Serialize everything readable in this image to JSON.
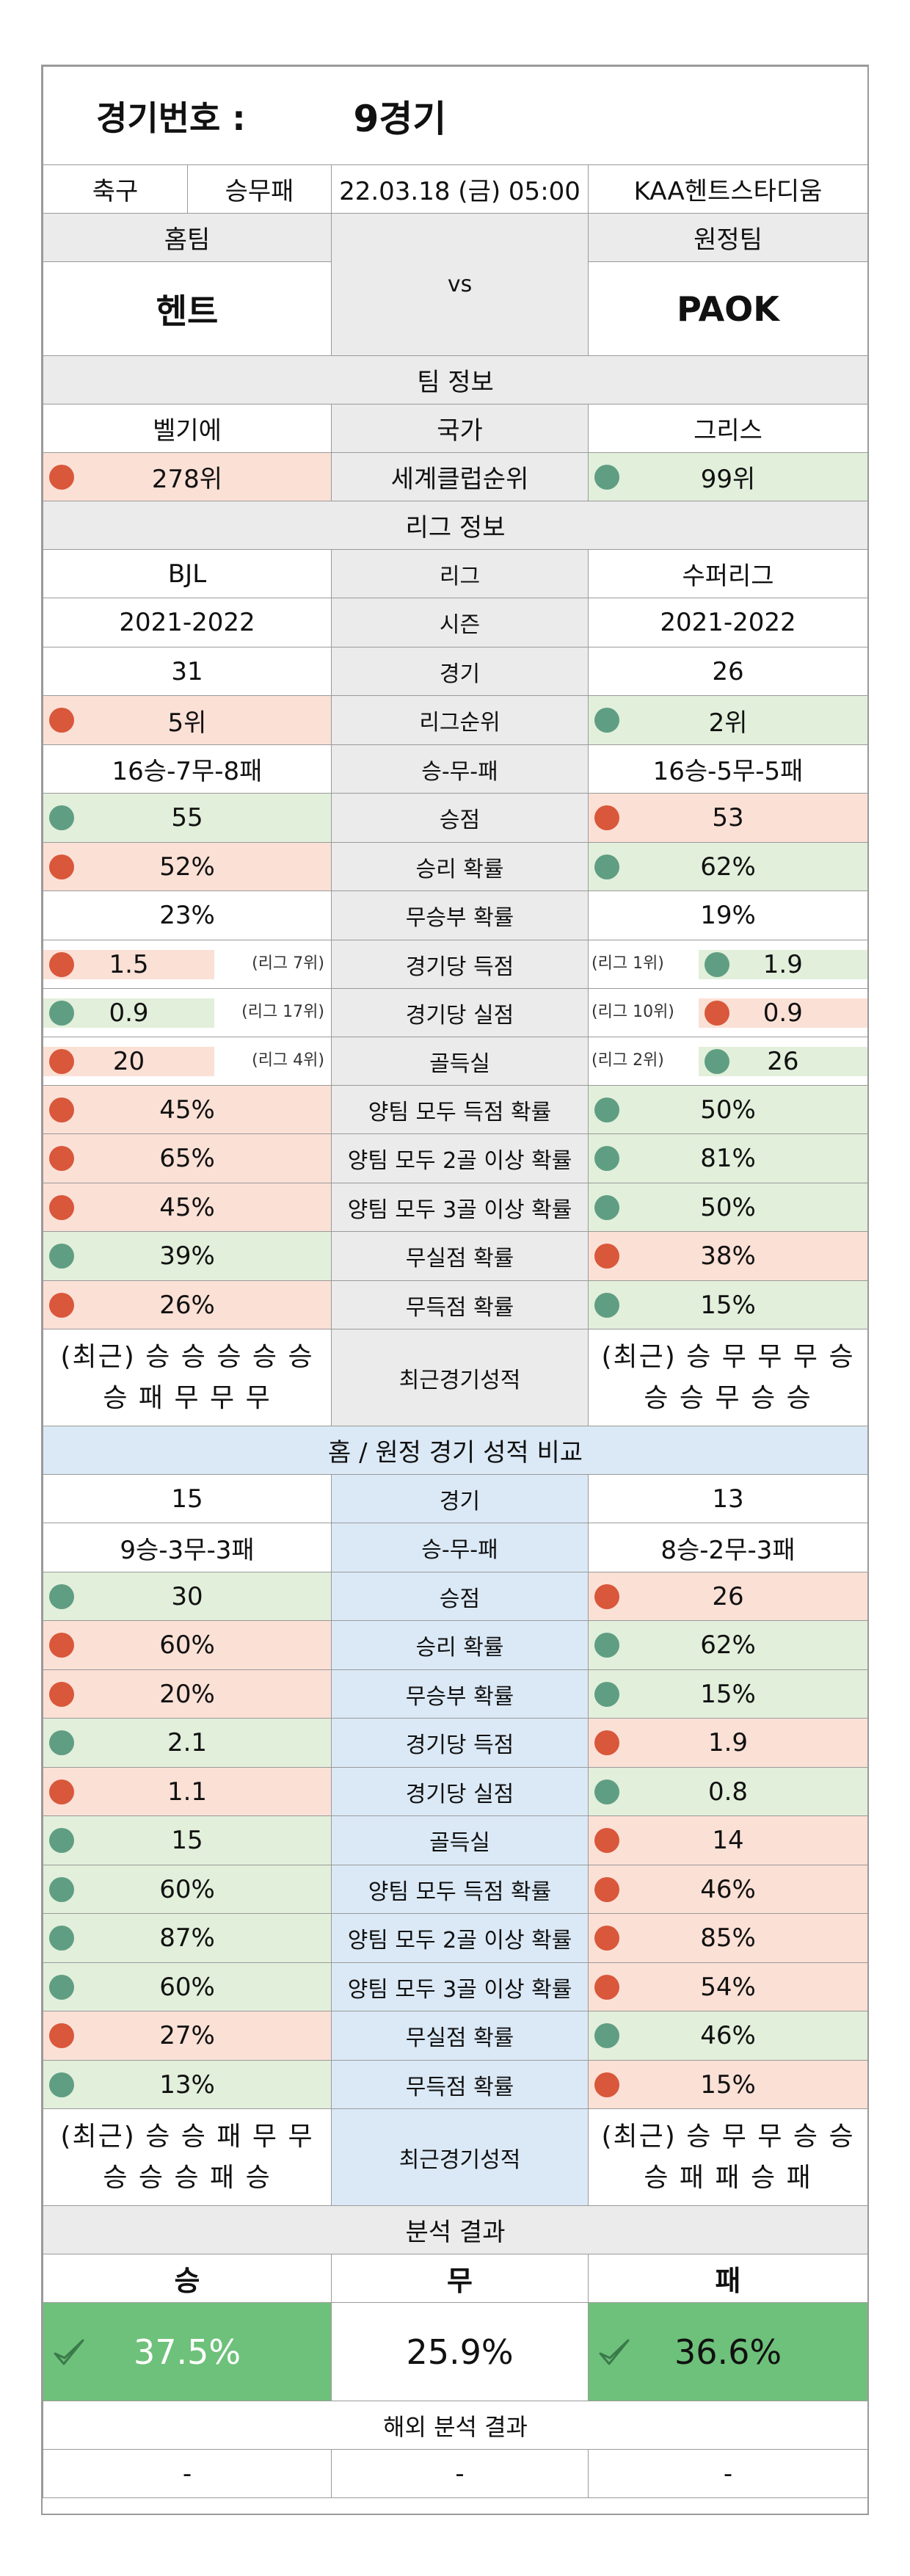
{
  "header": {
    "label": "경기번호 :",
    "number": "9경기"
  },
  "info": {
    "sport": "축구",
    "type": "승무패",
    "datetime": "22.03.18 (금) 05:00",
    "stadium": "KAA헨트스타디움"
  },
  "teams": {
    "home_label": "홈팀",
    "away_label": "원정팀",
    "home": "헨트",
    "away": "PAOK",
    "vs": "vs"
  },
  "team_info": {
    "title": "팀 정보",
    "country": {
      "home": "벨기에",
      "label": "국가",
      "away": "그리스"
    },
    "club_rank": {
      "home": "278위",
      "label": "세계클럽순위",
      "away": "99위",
      "home_color": "red",
      "away_color": "green"
    }
  },
  "league_info": {
    "title": "리그 정보",
    "rows": [
      {
        "home": "BJL",
        "label": "리그",
        "away": "수퍼리그",
        "hc": "white",
        "ac": "white"
      },
      {
        "home": "2021-2022",
        "label": "시즌",
        "away": "2021-2022",
        "hc": "white",
        "ac": "white"
      },
      {
        "home": "31",
        "label": "경기",
        "away": "26",
        "hc": "white",
        "ac": "white"
      },
      {
        "home": "5위",
        "label": "리그순위",
        "away": "2위",
        "hc": "red",
        "ac": "green"
      },
      {
        "home": "16승-7무-8패",
        "label": "승-무-패",
        "away": "16승-5무-5패",
        "hc": "white",
        "ac": "white"
      },
      {
        "home": "55",
        "label": "승점",
        "away": "53",
        "hc": "green",
        "ac": "red"
      },
      {
        "home": "52%",
        "label": "승리 확률",
        "away": "62%",
        "hc": "red",
        "ac": "green"
      },
      {
        "home": "23%",
        "label": "무승부 확률",
        "away": "19%",
        "hc": "white",
        "ac": "white"
      }
    ],
    "ranked_rows": [
      {
        "home": "1.5",
        "home_note": "(리그 7위)",
        "label": "경기당 득점",
        "away_note": "(리그 1위)",
        "away": "1.9",
        "hc": "red",
        "ac": "green"
      },
      {
        "home": "0.9",
        "home_note": "(리그 17위)",
        "label": "경기당 실점",
        "away_note": "(리그 10위)",
        "away": "0.9",
        "hc": "green",
        "ac": "red"
      },
      {
        "home": "20",
        "home_note": "(리그 4위)",
        "label": "골득실",
        "away_note": "(리그 2위)",
        "away": "26",
        "hc": "red",
        "ac": "green"
      }
    ],
    "prob_rows": [
      {
        "home": "45%",
        "label": "양팀 모두 득점 확률",
        "away": "50%",
        "hc": "red",
        "ac": "green"
      },
      {
        "home": "65%",
        "label": "양팀 모두 2골 이상 확률",
        "away": "81%",
        "hc": "red",
        "ac": "green"
      },
      {
        "home": "45%",
        "label": "양팀 모두 3골 이상 확률",
        "away": "50%",
        "hc": "red",
        "ac": "green"
      },
      {
        "home": "39%",
        "label": "무실점 확률",
        "away": "38%",
        "hc": "green",
        "ac": "red"
      },
      {
        "home": "26%",
        "label": "무득점 확률",
        "away": "15%",
        "hc": "red",
        "ac": "green"
      }
    ],
    "recent": {
      "home_line1": "(최근) 승 승 승 승 승",
      "home_line2": "승 패 무 무 무",
      "label": "최근경기성적",
      "away_line1": "(최근) 승 무 무 무 승",
      "away_line2": "승 승 무 승 승"
    }
  },
  "home_away": {
    "title": "홈 / 원정 경기 성적 비교",
    "rows": [
      {
        "home": "15",
        "label": "경기",
        "away": "13",
        "hc": "white",
        "ac": "white"
      },
      {
        "home": "9승-3무-3패",
        "label": "승-무-패",
        "away": "8승-2무-3패",
        "hc": "white",
        "ac": "white"
      },
      {
        "home": "30",
        "label": "승점",
        "away": "26",
        "hc": "green",
        "ac": "red"
      },
      {
        "home": "60%",
        "label": "승리 확률",
        "away": "62%",
        "hc": "red",
        "ac": "green"
      },
      {
        "home": "20%",
        "label": "무승부 확률",
        "away": "15%",
        "hc": "red",
        "ac": "green"
      },
      {
        "home": "2.1",
        "label": "경기당 득점",
        "away": "1.9",
        "hc": "green",
        "ac": "red"
      },
      {
        "home": "1.1",
        "label": "경기당 실점",
        "away": "0.8",
        "hc": "red",
        "ac": "green"
      },
      {
        "home": "15",
        "label": "골득실",
        "away": "14",
        "hc": "green",
        "ac": "red"
      },
      {
        "home": "60%",
        "label": "양팀 모두 득점 확률",
        "away": "46%",
        "hc": "green",
        "ac": "red"
      },
      {
        "home": "87%",
        "label": "양팀 모두 2골 이상 확률",
        "away": "85%",
        "hc": "green",
        "ac": "red"
      },
      {
        "home": "60%",
        "label": "양팀 모두 3골 이상 확률",
        "away": "54%",
        "hc": "green",
        "ac": "red"
      },
      {
        "home": "27%",
        "label": "무실점 확률",
        "away": "46%",
        "hc": "red",
        "ac": "green"
      },
      {
        "home": "13%",
        "label": "무득점 확률",
        "away": "15%",
        "hc": "green",
        "ac": "red"
      }
    ],
    "recent": {
      "home_line1": "(최근) 승 승 패 무 무",
      "home_line2": "승 승 승 패 승",
      "label": "최근경기성적",
      "away_line1": "(최근) 승 무 무 승 승",
      "away_line2": "승 패 패 승 패"
    }
  },
  "analysis": {
    "title": "분석 결과",
    "win_label": "승",
    "draw_label": "무",
    "lose_label": "패",
    "win": "37.5%",
    "draw": "25.9%",
    "lose": "36.6%"
  },
  "overseas": {
    "title": "해외 분석 결과",
    "win": "-",
    "draw": "-",
    "lose": "-"
  },
  "colors": {
    "red_bg": "#fbe0d6",
    "green_bg": "#e2efdb",
    "red_dot": "#d9573a",
    "green_dot": "#5f9e83",
    "gray_bg": "#ebebeb",
    "blue_bg": "#dbe9f6",
    "result_green": "#6ec17a"
  }
}
